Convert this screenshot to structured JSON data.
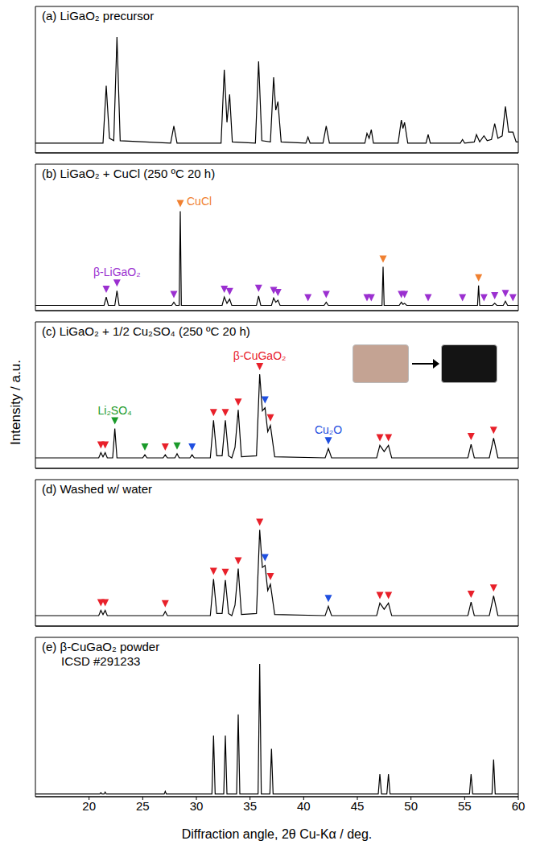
{
  "ylabel": "Intensity / a.u.",
  "chart_data": [
    {
      "type": "line",
      "title": "(a) LiGaO₂ precursor",
      "color": "#000000",
      "xlim": [
        15,
        60
      ],
      "xticks": [
        20,
        25,
        30,
        35,
        40,
        45,
        50,
        55,
        60
      ],
      "ylim": [
        0,
        120
      ],
      "tick_labels": false,
      "x": [
        15,
        21.3,
        21.6,
        21.9,
        22.3,
        22.6,
        22.9,
        27.6,
        27.9,
        28.2,
        32.3,
        32.6,
        32.85,
        33.1,
        33.35,
        35.5,
        35.8,
        36.1,
        36.9,
        37.2,
        37.4,
        37.6,
        37.9,
        40.2,
        40.4,
        40.6,
        41.8,
        42.1,
        42.4,
        45.7,
        45.9,
        46.1,
        46.3,
        46.5,
        48.8,
        49.1,
        49.25,
        49.4,
        49.7,
        51.4,
        51.6,
        51.8,
        54.6,
        54.8,
        55.0,
        55.9,
        56.1,
        56.4,
        56.8,
        57.1,
        57.5,
        57.8,
        58.1,
        58.5,
        58.8,
        59.1,
        59.5,
        59.8,
        60
      ],
      "values": [
        8,
        8,
        55,
        12,
        10,
        95,
        10,
        8,
        22,
        8,
        8,
        68,
        25,
        48,
        9,
        8,
        75,
        10,
        9,
        62,
        35,
        42,
        9,
        8,
        13,
        8,
        8,
        22,
        8,
        8,
        16,
        12,
        19,
        8,
        8,
        27,
        20,
        25,
        8,
        8,
        15,
        8,
        8,
        11,
        8,
        9,
        15,
        9,
        14,
        10,
        11,
        24,
        12,
        14,
        38,
        17,
        17,
        9,
        9
      ],
      "markers": []
    },
    {
      "type": "line",
      "title": "(b) LiGaO₂ + CuCl (250 ºC 20 h)",
      "color": "#000000",
      "xlim": [
        15,
        60
      ],
      "xticks": [
        20,
        25,
        30,
        35,
        40,
        45,
        50,
        55,
        60
      ],
      "ylim": [
        0,
        140
      ],
      "tick_labels": false,
      "x": [
        15,
        21.4,
        21.6,
        21.8,
        22.4,
        22.6,
        22.8,
        27.7,
        27.9,
        28.1,
        28.4,
        28.5,
        28.6,
        32.4,
        32.6,
        32.85,
        33.1,
        33.3,
        35.6,
        35.8,
        36.0,
        37.0,
        37.2,
        37.4,
        37.6,
        37.8,
        41.9,
        42.1,
        42.3,
        47.3,
        47.4,
        47.5,
        48.9,
        49.1,
        49.25,
        49.4,
        49.6,
        56.2,
        56.3,
        56.4,
        57.6,
        57.8,
        58.0,
        58.6,
        58.8,
        59.0,
        60
      ],
      "values": [
        5,
        5,
        13,
        5,
        5,
        19,
        5,
        5,
        8,
        5,
        5,
        95,
        5,
        5,
        13,
        7,
        11,
        5,
        5,
        14,
        5,
        5,
        12,
        8,
        10,
        5,
        5,
        8,
        5,
        5,
        42,
        5,
        5,
        8,
        6,
        7,
        5,
        5,
        24,
        5,
        5,
        7,
        5,
        5,
        9,
        5,
        5
      ],
      "markers": [
        {
          "name": "β-LiGaO₂",
          "color": "#9b30d0",
          "x": [
            21.6,
            22.6,
            27.9,
            32.6,
            33.1,
            35.8,
            37.2,
            37.6,
            40.4,
            42.1,
            45.9,
            46.3,
            49.1,
            49.4,
            51.6,
            54.8,
            56.8,
            57.8,
            58.8,
            59.5
          ]
        },
        {
          "name": "CuCl",
          "color": "#f08030",
          "x": [
            28.5,
            47.4,
            56.3
          ]
        }
      ]
    },
    {
      "type": "line",
      "title": "(c) LiGaO₂ + 1/2 Cu₂SO₄ (250 ºC 20 h)",
      "color": "#000000",
      "xlim": [
        15,
        60
      ],
      "xticks": [
        20,
        25,
        30,
        35,
        40,
        45,
        50,
        55,
        60
      ],
      "ylim": [
        0,
        140
      ],
      "tick_labels": false,
      "x": [
        15,
        20.9,
        21.1,
        21.3,
        21.5,
        21.7,
        22.2,
        22.4,
        22.6,
        25.0,
        25.2,
        25.4,
        26.9,
        27.1,
        27.3,
        28.0,
        28.2,
        28.4,
        29.4,
        29.6,
        29.8,
        31.3,
        31.6,
        31.9,
        32.4,
        32.7,
        33.0,
        33.3,
        33.6,
        33.9,
        34.2,
        35.6,
        35.9,
        36.15,
        36.4,
        36.65,
        36.9,
        37.3,
        42.0,
        42.3,
        42.6,
        46.8,
        47.1,
        47.5,
        47.9,
        48.2,
        55.3,
        55.6,
        55.9,
        57.3,
        57.7,
        58.1,
        60
      ],
      "values": [
        10,
        10,
        15,
        11,
        15,
        10,
        10,
        38,
        10,
        10,
        13,
        10,
        10,
        13,
        10,
        10,
        14,
        10,
        10,
        13,
        10,
        10,
        46,
        12,
        12,
        46,
        12,
        10,
        20,
        56,
        11,
        12,
        90,
        55,
        58,
        35,
        41,
        11,
        10,
        19,
        10,
        10,
        22,
        16,
        22,
        10,
        10,
        23,
        10,
        10,
        29,
        10,
        10
      ],
      "markers": [
        {
          "name": "β-CuGaO₂",
          "color": "#e8202a",
          "x": [
            21.1,
            21.5,
            27.1,
            31.6,
            32.7,
            33.9,
            35.9,
            36.9,
            47.1,
            47.9,
            55.6,
            57.7
          ]
        },
        {
          "name": "Li₂SO₄",
          "color": "#1a9a2a",
          "x": [
            22.4,
            25.2,
            28.2
          ]
        },
        {
          "name": "Cu₂O",
          "color": "#1f4fe0",
          "x": [
            29.6,
            36.4,
            42.3
          ]
        }
      ]
    },
    {
      "type": "line",
      "title": "(d) Washed w/ water",
      "color": "#000000",
      "xlim": [
        15,
        60
      ],
      "xticks": [
        20,
        25,
        30,
        35,
        40,
        45,
        50,
        55,
        60
      ],
      "ylim": [
        0,
        140
      ],
      "tick_labels": false,
      "x": [
        15,
        20.9,
        21.1,
        21.3,
        21.5,
        21.7,
        26.9,
        27.1,
        27.3,
        31.3,
        31.6,
        31.9,
        32.4,
        32.7,
        33.0,
        33.3,
        33.6,
        33.9,
        34.2,
        35.6,
        35.9,
        36.15,
        36.4,
        36.65,
        36.9,
        37.3,
        42.0,
        42.3,
        42.6,
        46.8,
        47.1,
        47.5,
        47.9,
        48.2,
        55.3,
        55.6,
        55.9,
        57.3,
        57.7,
        58.1,
        60
      ],
      "values": [
        10,
        10,
        15,
        11,
        15,
        10,
        10,
        14,
        10,
        10,
        45,
        12,
        12,
        44,
        12,
        10,
        20,
        55,
        11,
        12,
        92,
        56,
        58,
        34,
        40,
        11,
        10,
        19,
        10,
        10,
        22,
        16,
        22,
        10,
        10,
        23,
        10,
        10,
        29,
        10,
        10
      ],
      "markers": [
        {
          "color": "#e8202a",
          "x": [
            21.1,
            21.5,
            27.1,
            31.6,
            32.7,
            33.9,
            35.9,
            36.9,
            47.1,
            47.9,
            55.6,
            57.7
          ]
        },
        {
          "color": "#1f4fe0",
          "x": [
            36.4,
            42.3
          ]
        }
      ]
    },
    {
      "type": "line",
      "title": "(e) β-CuGaO₂ powder",
      "subtitle": "ICSD #291233",
      "xlabel": "Diffraction angle, 2θ Cu-Kα / deg.",
      "color": "#000000",
      "xlim": [
        15,
        60
      ],
      "xticks": [
        20,
        25,
        30,
        35,
        40,
        45,
        50,
        55,
        60
      ],
      "ylim": [
        0,
        120
      ],
      "tick_labels": "x",
      "x": [
        15,
        21.0,
        21.1,
        21.2,
        21.4,
        21.5,
        21.6,
        27.0,
        27.1,
        27.2,
        31.45,
        31.6,
        31.75,
        32.55,
        32.7,
        32.85,
        33.75,
        33.9,
        34.05,
        35.75,
        35.9,
        36.05,
        36.85,
        37.0,
        37.15,
        46.95,
        47.1,
        47.25,
        47.75,
        47.9,
        48.05,
        55.45,
        55.6,
        55.75,
        57.55,
        57.7,
        57.85,
        60
      ],
      "values": [
        2,
        2,
        3,
        2,
        2,
        3.5,
        2,
        2,
        4,
        2,
        2,
        46,
        2,
        2,
        46,
        2,
        2,
        62,
        2,
        2,
        100,
        2,
        2,
        36,
        2,
        2,
        17,
        2,
        2,
        17,
        2,
        2,
        17,
        2,
        2,
        28,
        2,
        2
      ],
      "markers": []
    }
  ]
}
